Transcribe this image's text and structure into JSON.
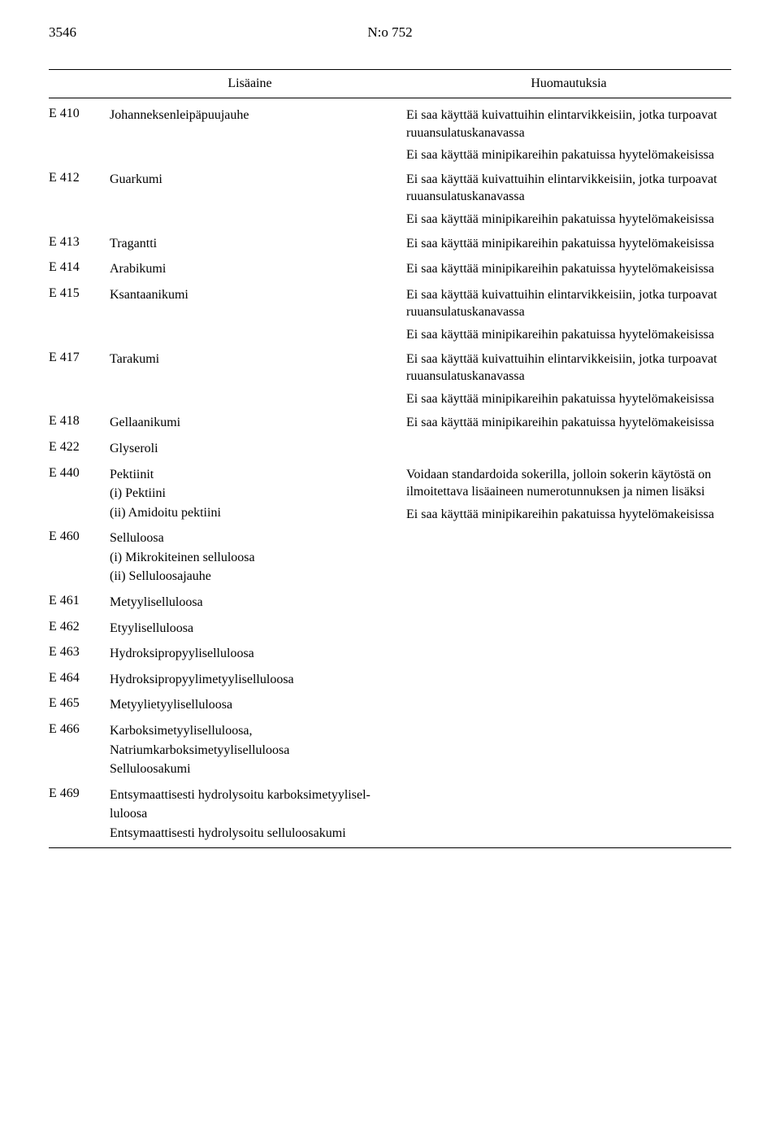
{
  "header": {
    "page_number": "3546",
    "doc_number": "N:o 752"
  },
  "table_headers": {
    "col_name": "Lisäaine",
    "col_notes": "Huomautuksia"
  },
  "rows": [
    {
      "code": "E 410",
      "name_lines": [
        "Johanneksenleipäpuujauhe"
      ],
      "notes": [
        "Ei saa käyttää kuivattuihin elintarvikkeisiin, jotka turpoavat ruuansulatuskanavassa",
        "Ei saa käyttää minipikareihin pakatuissa hyytelömakeisissa"
      ]
    },
    {
      "code": "E 412",
      "name_lines": [
        "Guarkumi"
      ],
      "notes": [
        "Ei saa käyttää kuivattuihin elintarvikkeisiin, jotka turpoavat ruuansulatuskanavassa",
        "Ei saa käyttää minipikareihin pakatuissa hyytelömakeisissa"
      ]
    },
    {
      "code": "E 413",
      "name_lines": [
        "Tragantti"
      ],
      "notes": [
        "Ei saa käyttää minipikareihin pakatuissa hyytelömakeisissa"
      ]
    },
    {
      "code": "E 414",
      "name_lines": [
        "Arabikumi"
      ],
      "notes": [
        "Ei saa käyttää minipikareihin pakatuissa hyytelömakeisissa"
      ]
    },
    {
      "code": "E 415",
      "name_lines": [
        "Ksantaanikumi"
      ],
      "notes": [
        "Ei saa käyttää kuivattuihin elintarvikkeisiin, jotka turpoavat ruuansulatuskanavassa",
        "Ei saa käyttää minipikareihin pakatuissa hyytelömakeisissa"
      ]
    },
    {
      "code": "E 417",
      "name_lines": [
        "Tarakumi"
      ],
      "notes": [
        "Ei saa käyttää kuivattuihin elintarvikkeisiin, jotka turpoavat ruuansulatuskanavassa",
        "Ei saa käyttää minipikareihin pakatuissa hyytelömakeisissa"
      ]
    },
    {
      "code": "E 418",
      "name_lines": [
        "Gellaanikumi"
      ],
      "notes": [
        "Ei saa käyttää minipikareihin pakatuissa hyytelömakeisissa"
      ]
    },
    {
      "code": "E 422",
      "name_lines": [
        "Glyseroli"
      ],
      "notes": []
    },
    {
      "code": "E 440",
      "name_lines": [
        "Pektiinit",
        "(i) Pektiini",
        "(ii) Amidoitu pektiini"
      ],
      "notes": [
        "Voidaan standardoida sokerilla, jolloin sokerin käytöstä on ilmoitettava lisäaineen numerotunnuksen ja nimen lisäksi",
        "Ei saa käyttää minipikareihin pakatuissa hyytelömakeisissa"
      ]
    },
    {
      "code": "E 460",
      "name_lines": [
        "Selluloosa",
        "(i) Mikrokiteinen selluloosa",
        "(ii) Selluloosajauhe"
      ],
      "notes": []
    },
    {
      "code": "E 461",
      "name_lines": [
        "Metyyliselluloosa"
      ],
      "notes": []
    },
    {
      "code": "E 462",
      "name_lines": [
        "Etyyliselluloosa"
      ],
      "notes": []
    },
    {
      "code": "E 463",
      "name_lines": [
        "Hydroksipropyyliselluloosa"
      ],
      "notes": []
    },
    {
      "code": "E 464",
      "name_lines": [
        "Hydroksipropyylimetyyliselluloosa"
      ],
      "notes": []
    },
    {
      "code": "E 465",
      "name_lines": [
        "Metyylietyyliselluloosa"
      ],
      "notes": []
    },
    {
      "code": "E 466",
      "name_lines": [
        "Karboksimetyyliselluloosa,",
        "Natriumkarboksimetyyliselluloosa",
        "Selluloosakumi"
      ],
      "notes": []
    },
    {
      "code": "E 469",
      "name_lines": [
        "Entsymaattisesti hydrolysoitu karboksimetyylisel-",
        "luloosa",
        "Entsymaattisesti hydrolysoitu selluloosakumi"
      ],
      "notes": []
    }
  ]
}
